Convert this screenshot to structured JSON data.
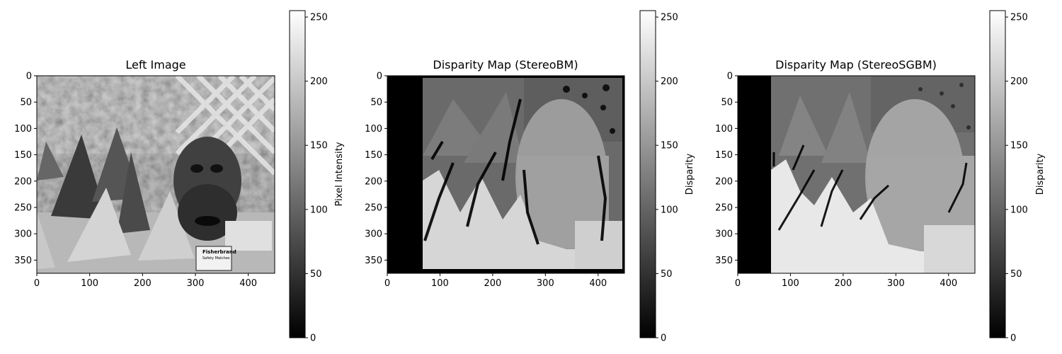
{
  "chart_data": [
    {
      "type": "heatmap",
      "title": "Left Image",
      "image_description": "grayscale stereo scene: party cones, a carved face mask, a lattice fence, a matchbox",
      "x_ticks": [
        "0",
        "100",
        "200",
        "300",
        "400"
      ],
      "y_ticks": [
        "0",
        "50",
        "100",
        "150",
        "200",
        "250",
        "300",
        "350"
      ],
      "xlim": [
        0,
        450
      ],
      "ylim": [
        0,
        375
      ],
      "colorbar": {
        "label": "Pixel Intensity",
        "ticks": [
          "0",
          "50",
          "100",
          "150",
          "200",
          "250"
        ],
        "range": [
          0,
          255
        ],
        "colormap": "gray"
      },
      "overlay_text": [
        "Fisherbrand",
        "Safety Matches"
      ]
    },
    {
      "type": "heatmap",
      "title": "Disparity Map (StereoBM)",
      "x_ticks": [
        "0",
        "100",
        "200",
        "300",
        "400"
      ],
      "y_ticks": [
        "0",
        "50",
        "100",
        "150",
        "200",
        "250",
        "300",
        "350"
      ],
      "xlim": [
        0,
        450
      ],
      "ylim": [
        0,
        375
      ],
      "colorbar": {
        "label": "Disparity",
        "ticks": [
          "0",
          "50",
          "100",
          "150",
          "200",
          "250"
        ],
        "range": [
          0,
          255
        ],
        "colormap": "gray"
      }
    },
    {
      "type": "heatmap",
      "title": "Disparity Map (StereoSGBM)",
      "x_ticks": [
        "0",
        "100",
        "200",
        "300",
        "400"
      ],
      "y_ticks": [
        "0",
        "50",
        "100",
        "150",
        "200",
        "250",
        "300",
        "350"
      ],
      "xlim": [
        0,
        450
      ],
      "ylim": [
        0,
        375
      ],
      "colorbar": {
        "label": "Disparity",
        "ticks": [
          "0",
          "50",
          "100",
          "150",
          "200",
          "250"
        ],
        "range": [
          0,
          255
        ],
        "colormap": "gray"
      }
    }
  ],
  "colors": {
    "background": "#ffffff",
    "axis": "#000000"
  }
}
